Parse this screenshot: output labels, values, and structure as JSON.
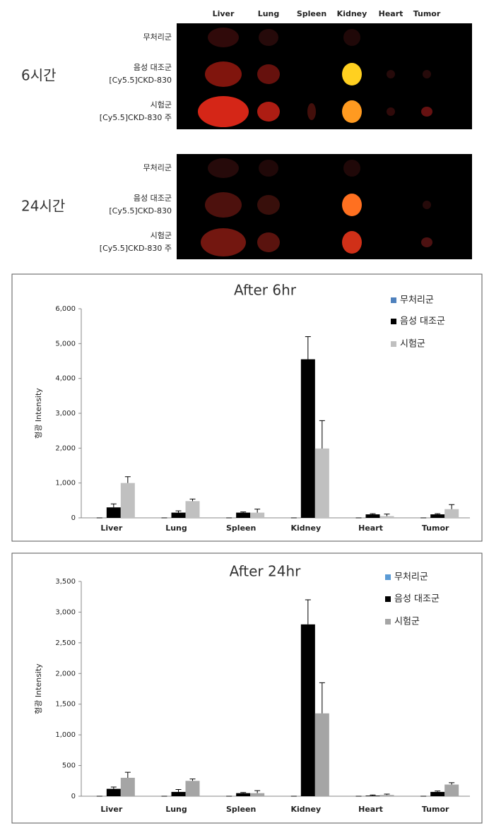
{
  "image_panel": {
    "columns": [
      "Liver",
      "Lung",
      "Spleen",
      "Kidney",
      "Heart",
      "Tumor"
    ],
    "groups": [
      {
        "time": "6시간",
        "rows": [
          [
            "무처리군"
          ],
          [
            "음성 대조군",
            "[Cy5.5]CKD-830"
          ],
          [
            "시험군",
            "[Cy5.5]CKD-830 주"
          ]
        ]
      },
      {
        "time": "24시간",
        "rows": [
          [
            "무처리군"
          ],
          [
            "음성 대조군",
            "[Cy5.5]CKD-830"
          ],
          [
            "시험군",
            "[Cy5.5]CKD-830 주"
          ]
        ]
      }
    ]
  },
  "chart_data": [
    {
      "type": "bar",
      "title": "After 6hr",
      "y_label": "형광 Intensity",
      "categories": [
        "Liver",
        "Lung",
        "Spleen",
        "Kidney",
        "Heart",
        "Tumor"
      ],
      "series": [
        {
          "name": "무처리군",
          "color": "#4f81bd",
          "values": [
            0,
            0,
            0,
            0,
            0,
            0
          ],
          "errors": [
            0,
            0,
            0,
            0,
            0,
            0
          ]
        },
        {
          "name": "음성 대조군",
          "color": "#000000",
          "values": [
            300,
            150,
            150,
            4550,
            100,
            100
          ],
          "errors": [
            100,
            50,
            20,
            650,
            20,
            20
          ]
        },
        {
          "name": "시험군",
          "color": "#c0c0c0",
          "values": [
            1000,
            480,
            150,
            1990,
            50,
            250
          ],
          "errors": [
            180,
            60,
            100,
            800,
            60,
            130
          ]
        }
      ],
      "ylim": [
        0,
        6000
      ],
      "yticks": [
        0,
        {
          "value": 1000,
          "label": "1,000"
        },
        {
          "value": 2000,
          "label": "2,000"
        },
        {
          "value": 3000,
          "label": "3,000"
        },
        {
          "value": 4000,
          "label": "4,000"
        },
        {
          "value": 5000,
          "label": "5,000"
        },
        {
          "value": 6000,
          "label": "6,000"
        }
      ],
      "grid": false,
      "legend": "top-right"
    },
    {
      "type": "bar",
      "title": "After 24hr",
      "y_label": "형광 Intensity",
      "categories": [
        "Liver",
        "Lung",
        "Spleen",
        "Kidney",
        "Heart",
        "Tumor"
      ],
      "series": [
        {
          "name": "무처리군",
          "color": "#5b9bd5",
          "values": [
            0,
            0,
            0,
            0,
            0,
            0
          ],
          "errors": [
            0,
            0,
            0,
            0,
            0,
            0
          ]
        },
        {
          "name": "음성 대조군",
          "color": "#000000",
          "values": [
            120,
            70,
            50,
            2800,
            10,
            70
          ],
          "errors": [
            30,
            40,
            10,
            400,
            10,
            15
          ]
        },
        {
          "name": "시험군",
          "color": "#a5a5a5",
          "values": [
            300,
            250,
            50,
            1350,
            20,
            190
          ],
          "errors": [
            90,
            30,
            40,
            500,
            15,
            30
          ]
        }
      ],
      "ylim": [
        0,
        3500
      ],
      "yticks": [
        0,
        500,
        {
          "value": 1000,
          "label": "1,000"
        },
        {
          "value": 1500,
          "label": "1,500"
        },
        {
          "value": 2000,
          "label": "2,000"
        },
        {
          "value": 2500,
          "label": "2,500"
        },
        {
          "value": 3000,
          "label": "3,000"
        },
        {
          "value": 3500,
          "label": "3,500"
        }
      ],
      "grid": false,
      "legend": "top-right"
    }
  ]
}
